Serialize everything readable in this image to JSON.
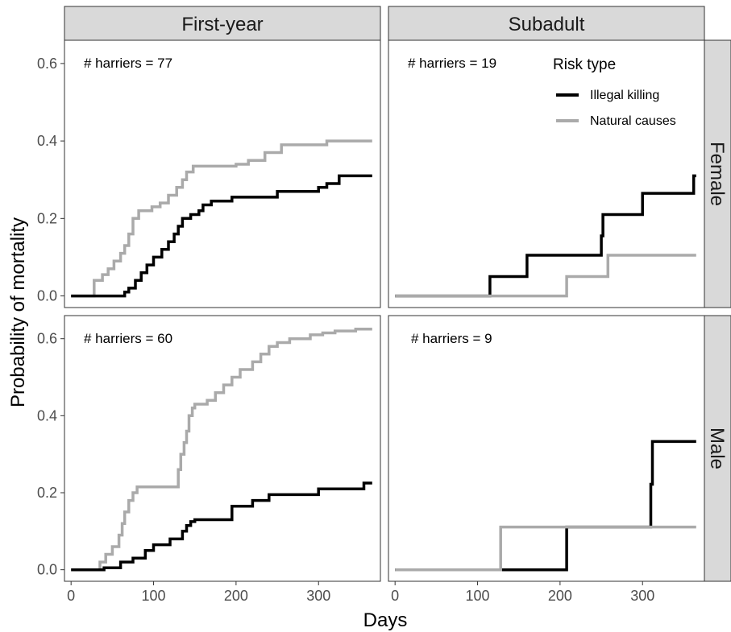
{
  "chart_data": {
    "type": "line",
    "step": true,
    "grid": false,
    "xlabel": "Days",
    "ylabel": "Probability of mortality",
    "xlim": [
      -8,
      375
    ],
    "ylim": [
      -0.03,
      0.66
    ],
    "x_ticks": [
      "0",
      "100",
      "200",
      "300"
    ],
    "y_ticks": [
      "0.0",
      "0.2",
      "0.4",
      "0.6"
    ],
    "x_tick_values": [
      0,
      100,
      200,
      300
    ],
    "y_tick_values": [
      0,
      0.2,
      0.4,
      0.6
    ],
    "column_facets": [
      "First-year",
      "Subadult"
    ],
    "row_facets": [
      "Female",
      "Male"
    ],
    "legend": {
      "title": "Risk type",
      "placement": "top-right",
      "entries": [
        {
          "label": "Illegal killing",
          "color": "#000000"
        },
        {
          "label": "Natural causes",
          "color": "#aaaaaa"
        }
      ]
    },
    "panels": [
      {
        "column": "First-year",
        "row": "Female",
        "annotation": "# harriers = 77",
        "series": [
          {
            "name": "Natural causes",
            "color": "#aaaaaa",
            "x": [
              0,
              28,
              38,
              45,
              52,
              60,
              65,
              70,
              75,
              82,
              98,
              108,
              118,
              128,
              135,
              140,
              148,
              200,
              215,
              235,
              255,
              300,
              310,
              365
            ],
            "y": [
              0,
              0.04,
              0.055,
              0.07,
              0.09,
              0.11,
              0.13,
              0.16,
              0.2,
              0.22,
              0.23,
              0.24,
              0.26,
              0.28,
              0.3,
              0.32,
              0.335,
              0.34,
              0.35,
              0.37,
              0.39,
              0.39,
              0.4,
              0.4
            ]
          },
          {
            "name": "Illegal killing",
            "color": "#000000",
            "x": [
              0,
              65,
              70,
              78,
              85,
              92,
              100,
              110,
              118,
              125,
              130,
              135,
              145,
              155,
              160,
              170,
              195,
              250,
              300,
              310,
              325,
              365
            ],
            "y": [
              0,
              0.01,
              0.02,
              0.04,
              0.06,
              0.08,
              0.1,
              0.12,
              0.14,
              0.16,
              0.18,
              0.2,
              0.21,
              0.22,
              0.235,
              0.245,
              0.255,
              0.27,
              0.28,
              0.29,
              0.31,
              0.31
            ]
          }
        ]
      },
      {
        "column": "Subadult",
        "row": "Female",
        "annotation": "# harriers = 19",
        "series": [
          {
            "name": "Illegal killing",
            "color": "#000000",
            "x": [
              0,
              115,
              160,
              250,
              252,
              300,
              362,
              365
            ],
            "y": [
              0,
              0.05,
              0.105,
              0.155,
              0.21,
              0.265,
              0.31,
              0.31
            ]
          },
          {
            "name": "Natural causes",
            "color": "#aaaaaa",
            "x": [
              0,
              208,
              258,
              365
            ],
            "y": [
              0,
              0.05,
              0.105,
              0.105
            ]
          }
        ]
      },
      {
        "column": "First-year",
        "row": "Male",
        "annotation": "# harriers = 60",
        "series": [
          {
            "name": "Natural causes",
            "color": "#aaaaaa",
            "x": [
              0,
              35,
              42,
              50,
              58,
              62,
              65,
              70,
              75,
              80,
              125,
              130,
              133,
              137,
              140,
              143,
              147,
              150,
              165,
              175,
              185,
              195,
              205,
              220,
              230,
              240,
              250,
              265,
              290,
              305,
              320,
              345,
              365
            ],
            "y": [
              0,
              0.02,
              0.04,
              0.06,
              0.09,
              0.12,
              0.15,
              0.18,
              0.2,
              0.215,
              0.215,
              0.26,
              0.3,
              0.33,
              0.36,
              0.4,
              0.42,
              0.43,
              0.44,
              0.46,
              0.48,
              0.5,
              0.52,
              0.54,
              0.56,
              0.58,
              0.59,
              0.6,
              0.61,
              0.615,
              0.62,
              0.625,
              0.625
            ]
          },
          {
            "name": "Illegal killing",
            "color": "#000000",
            "x": [
              0,
              40,
              60,
              75,
              90,
              100,
              120,
              135,
              140,
              145,
              150,
              195,
              220,
              240,
              300,
              355,
              365
            ],
            "y": [
              0,
              0.005,
              0.02,
              0.03,
              0.05,
              0.065,
              0.08,
              0.1,
              0.115,
              0.125,
              0.13,
              0.165,
              0.18,
              0.195,
              0.21,
              0.225,
              0.225
            ]
          }
        ]
      },
      {
        "column": "Subadult",
        "row": "Male",
        "annotation": "# harriers = 9",
        "series": [
          {
            "name": "Illegal killing",
            "color": "#000000",
            "x": [
              0,
              208,
              308,
              310,
              312,
              365
            ],
            "y": [
              0,
              0.111,
              0.111,
              0.222,
              0.333,
              0.333
            ]
          },
          {
            "name": "Natural causes",
            "color": "#aaaaaa",
            "x": [
              0,
              128,
              365
            ],
            "y": [
              0,
              0.111,
              0.111
            ]
          }
        ]
      }
    ]
  }
}
